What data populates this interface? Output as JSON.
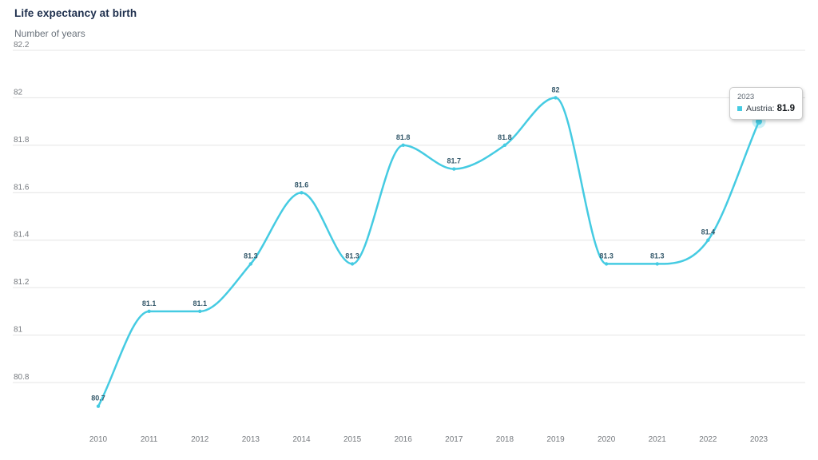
{
  "chart_data": {
    "type": "line",
    "title": "Life expectancy at birth",
    "subtitle": "Number of years",
    "categories": [
      "2010",
      "2011",
      "2012",
      "2013",
      "2014",
      "2015",
      "2016",
      "2017",
      "2018",
      "2019",
      "2020",
      "2021",
      "2022",
      "2023"
    ],
    "series": [
      {
        "name": "Austria",
        "values": [
          80.7,
          81.1,
          81.1,
          81.3,
          81.6,
          81.3,
          81.8,
          81.7,
          81.8,
          82,
          81.3,
          81.3,
          81.4,
          81.9
        ],
        "point_labels": [
          "80.7",
          "81.1",
          "81.1",
          "81.3",
          "81.6",
          "81.3",
          "81.8",
          "81.7",
          "81.8",
          "82",
          "81.3",
          "81.3",
          "81.4",
          "81.9"
        ]
      }
    ],
    "y_tick_labels": [
      "82.2",
      "82",
      "81.8",
      "81.6",
      "81.4",
      "81.2",
      "81",
      "80.8"
    ],
    "ylim": [
      80.66,
      82.2
    ],
    "xlabel": "",
    "ylabel": "Number of years",
    "grid": true,
    "legend_position": "none",
    "colors": {
      "line": "#45CBE2",
      "halo": "rgba(69,203,226,0.28)",
      "data_label": "#35596B",
      "title": "#1E2F4D",
      "subtitle": "#6B737C",
      "axis_label": "#75797E",
      "gridline": "#E4E4E4",
      "tooltip_category": "#5C6670",
      "tooltip_series": "#333D47",
      "tooltip_value": "#14181C"
    }
  },
  "tooltip": {
    "category": "2023",
    "series_label": "Austria:",
    "value": "81.9",
    "highlighted_point_index": 13
  }
}
